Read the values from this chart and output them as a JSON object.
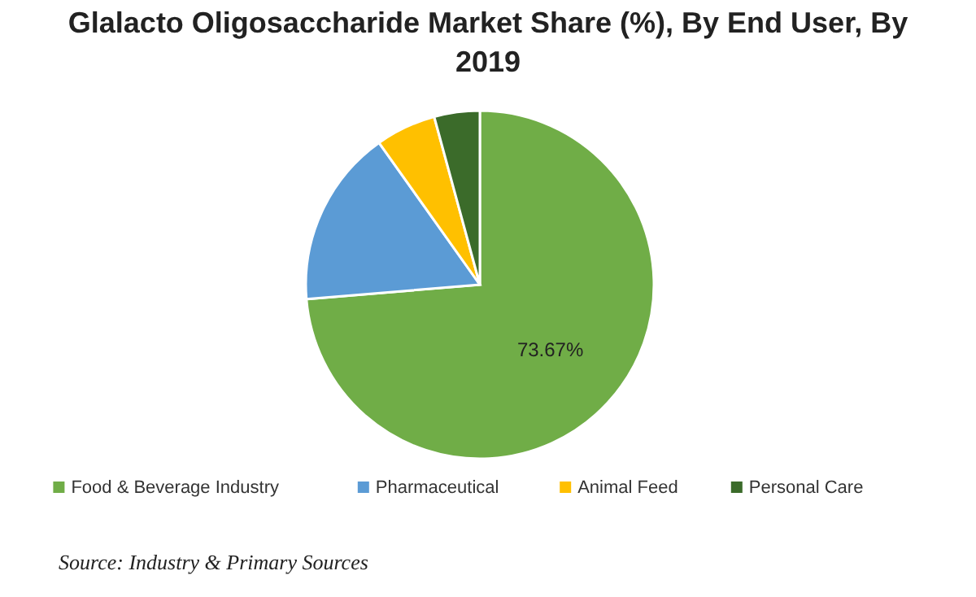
{
  "chart_data": {
    "type": "pie",
    "title": "Glalacto Oligosaccharide Market Share (%), By End User, By 2019",
    "categories": [
      "Food & Beverage Industry",
      "Pharmaceutical",
      "Animal Feed",
      "Personal Care"
    ],
    "values": [
      73.67,
      16.5,
      5.6,
      4.23
    ],
    "colors": [
      "#70ad47",
      "#5b9bd5",
      "#ffc000",
      "#3b6b2a"
    ],
    "value_labels": [
      "73.67%",
      null,
      null,
      null
    ],
    "legend": "bottom",
    "annotations": [
      "Source: Industry & Primary Sources"
    ]
  }
}
